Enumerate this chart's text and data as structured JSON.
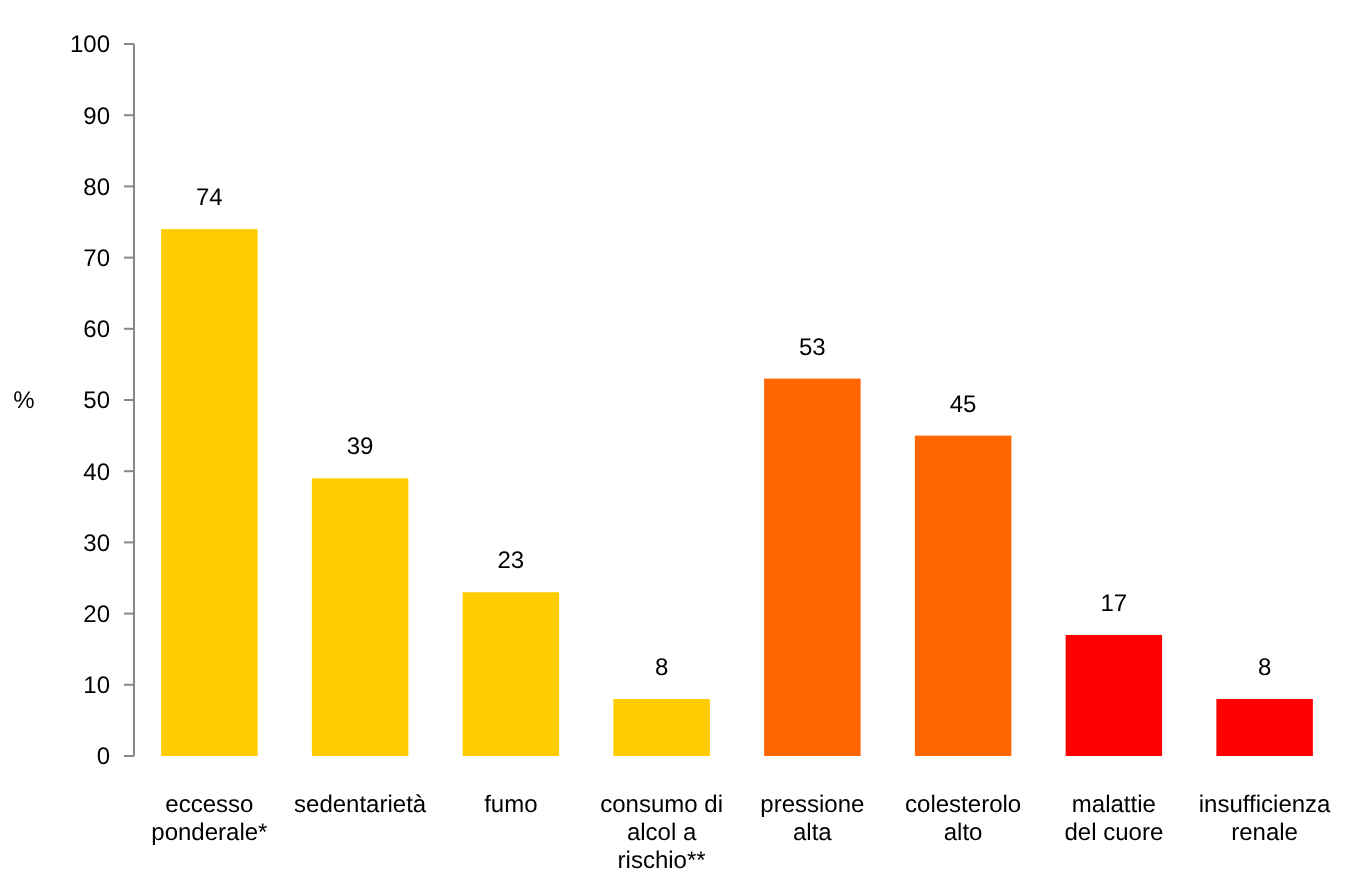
{
  "chart_data": {
    "type": "bar",
    "ylabel": "%",
    "categories": [
      "eccesso ponderale*",
      "sedentarietà",
      "fumo",
      "consumo di alcol a rischio**",
      "pressione alta",
      "colesterolo alto",
      "malattie del cuore",
      "insufficienza renale"
    ],
    "values": [
      74,
      39,
      23,
      8,
      53,
      45,
      17,
      8
    ],
    "colors": [
      "#ffcc00",
      "#ffcc00",
      "#ffcc00",
      "#ffcc00",
      "#ff6600",
      "#ff6600",
      "#ff0000",
      "#ff0000"
    ],
    "ylim": [
      0,
      100
    ],
    "yticks": [
      0,
      10,
      20,
      30,
      40,
      50,
      60,
      70,
      80,
      90,
      100
    ],
    "data_labels": true
  }
}
